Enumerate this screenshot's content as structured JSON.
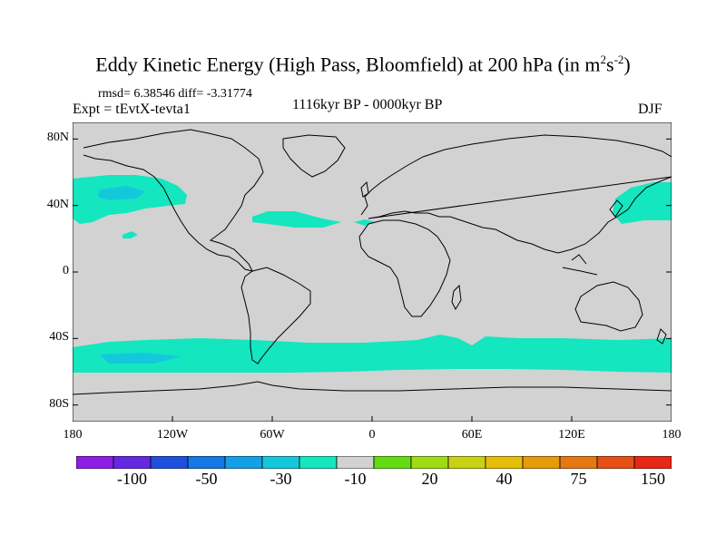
{
  "title": {
    "main": "Eddy Kinetic Energy (High Pass, Bloomfield) at 200 hPa (in m",
    "sup1": "2",
    "mid": "s",
    "sup2": "-2",
    "end": ")"
  },
  "stats": "rmsd= 6.38546 diff= -3.31774",
  "experiment": "Expt = tEvtX-tevta1",
  "period": "1116kyr BP - 0000kyr BP",
  "season": "DJF",
  "axes": {
    "lat_labels": [
      "80N",
      "40N",
      "0",
      "40S",
      "80S"
    ],
    "lat_values": [
      80,
      40,
      0,
      -40,
      -80
    ],
    "lon_labels": [
      "180",
      "120W",
      "60W",
      "0",
      "60E",
      "120E",
      "180"
    ],
    "lon_values": [
      -180,
      -120,
      -60,
      0,
      60,
      120,
      180
    ]
  },
  "colorbar": {
    "colors": [
      "#8c1ee6",
      "#6428e0",
      "#1e50dc",
      "#1478e6",
      "#14a0e6",
      "#14c8dc",
      "#14e6c0",
      "#d2d2d2",
      "#64dc14",
      "#a0dc14",
      "#c8d214",
      "#e6be0a",
      "#e69b0a",
      "#e67814",
      "#e65014",
      "#e62814"
    ],
    "labels": [
      "-100",
      "-50",
      "-30",
      "-10",
      "20",
      "40",
      "75",
      "150"
    ]
  },
  "map": {
    "background": "#d2d2d2",
    "anomaly_color": "#14e6c0",
    "anomaly_dark": "#14c8dc",
    "coast_color": "#000000"
  }
}
